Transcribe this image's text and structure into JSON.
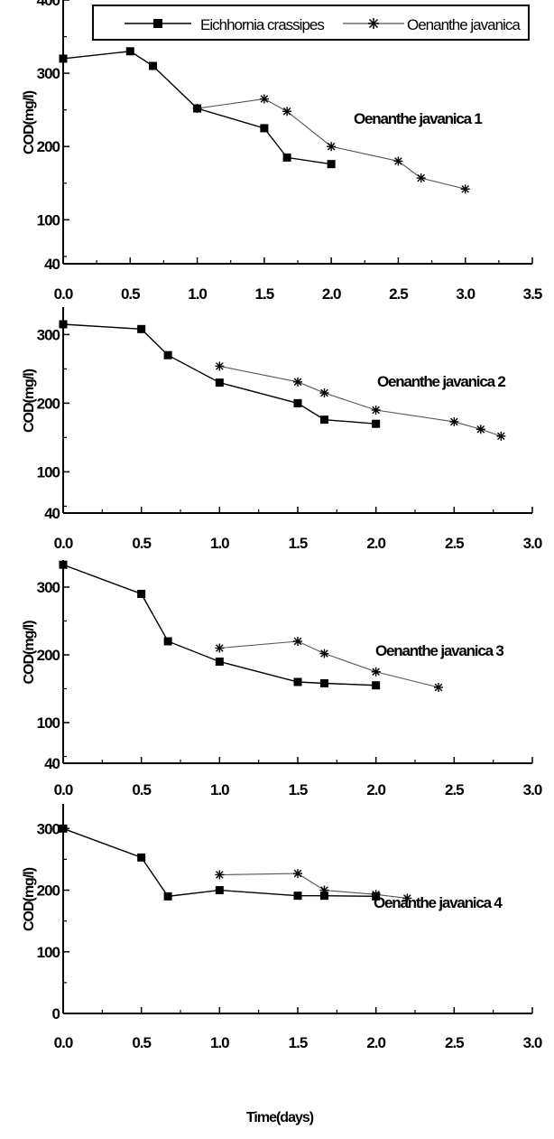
{
  "legend": {
    "series_a": "Eichhornia crassipes",
    "series_b": "Oenanthe javanica"
  },
  "x_title": "Time(days)",
  "y_title": "COD(mg/l)",
  "colors": {
    "line_a": "#000000",
    "line_b": "#555555"
  },
  "chart_data": [
    {
      "type": "line",
      "label": "Oenanthe javanica 1",
      "xlim": [
        0,
        3.5
      ],
      "xticks": [
        "0.0",
        "0.5",
        "1.0",
        "1.5",
        "2.0",
        "2.5",
        "3.0",
        "3.5"
      ],
      "ylim": [
        40,
        400
      ],
      "yticks": [
        "100",
        "200",
        "300",
        "400"
      ],
      "ylabel_bottom": "40",
      "series": [
        {
          "name": "Eichhornia crassipes",
          "x": [
            0.0,
            0.5,
            0.67,
            1.0,
            1.5,
            1.67,
            2.0
          ],
          "values": [
            320,
            330,
            310,
            252,
            225,
            185,
            176
          ]
        },
        {
          "name": "Oenanthe javanica",
          "x": [
            1.0,
            1.5,
            1.67,
            2.0,
            2.5,
            2.67,
            3.0
          ],
          "values": [
            252,
            265,
            248,
            200,
            180,
            157,
            142
          ]
        }
      ]
    },
    {
      "type": "line",
      "label": "Oenanthe javanica 2",
      "xlim": [
        0,
        3.0
      ],
      "xticks": [
        "0.0",
        "0.5",
        "1.0",
        "1.5",
        "2.0",
        "2.5",
        "3.0"
      ],
      "ylim": [
        40,
        340
      ],
      "yticks": [
        "100",
        "200",
        "300"
      ],
      "ylabel_bottom": "40",
      "series": [
        {
          "name": "Eichhornia crassipes",
          "x": [
            0.0,
            0.5,
            0.67,
            1.0,
            1.5,
            1.67,
            2.0
          ],
          "values": [
            315,
            308,
            270,
            230,
            200,
            176,
            170
          ]
        },
        {
          "name": "Oenanthe javanica",
          "x": [
            1.0,
            1.5,
            1.67,
            2.0,
            2.5,
            2.67,
            2.8
          ],
          "values": [
            254,
            231,
            215,
            190,
            173,
            162,
            152
          ]
        }
      ]
    },
    {
      "type": "line",
      "label": "Oenanthe javanica 3",
      "xlim": [
        0,
        3.0
      ],
      "xticks": [
        "0.0",
        "0.5",
        "1.0",
        "1.5",
        "2.0",
        "2.5",
        "3.0"
      ],
      "ylim": [
        40,
        340
      ],
      "yticks": [
        "100",
        "200",
        "300"
      ],
      "ylabel_bottom": "40",
      "series": [
        {
          "name": "Eichhornia crassipes",
          "x": [
            0.0,
            0.5,
            0.67,
            1.0,
            1.5,
            1.67,
            2.0
          ],
          "values": [
            333,
            290,
            220,
            190,
            160,
            158,
            155
          ]
        },
        {
          "name": "Oenanthe javanica",
          "x": [
            1.0,
            1.5,
            1.67,
            2.0,
            2.4
          ],
          "values": [
            210,
            220,
            202,
            175,
            152
          ]
        }
      ]
    },
    {
      "type": "line",
      "label": "Oenanthe javanica 4",
      "xlim": [
        0,
        3.0
      ],
      "xticks": [
        "0.0",
        "0.5",
        "1.0",
        "1.5",
        "2.0",
        "2.5",
        "3.0"
      ],
      "ylim": [
        0,
        340
      ],
      "yticks": [
        "0",
        "100",
        "200",
        "300"
      ],
      "ylabel_bottom": "",
      "series": [
        {
          "name": "Eichhornia crassipes",
          "x": [
            0.0,
            0.5,
            0.67,
            1.0,
            1.5,
            1.67,
            2.0
          ],
          "values": [
            300,
            253,
            190,
            200,
            191,
            191,
            190
          ]
        },
        {
          "name": "Oenanthe javanica",
          "x": [
            1.0,
            1.5,
            1.67,
            2.0,
            2.2
          ],
          "values": [
            225,
            227,
            200,
            193,
            187
          ]
        }
      ]
    }
  ]
}
